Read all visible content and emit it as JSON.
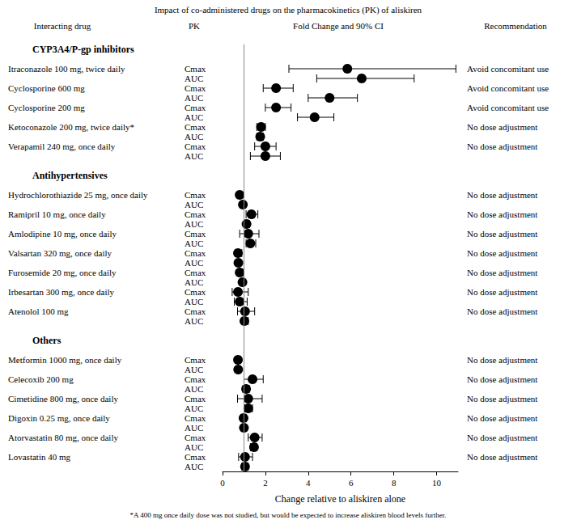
{
  "chart_data": {
    "type": "forest",
    "title": "Impact of co-administered drugs on the pharmacokinetics (PK) of aliskiren",
    "column_headers": [
      "Interacting drug",
      "PK",
      "Fold Change and 90% CI",
      "Recommendation"
    ],
    "x_label": "Change relative to aliskiren alone",
    "footnote": "*A 400 mg once daily dose was not studied, but would be expected to increase aliskiren blood levels further.",
    "xlim": [
      0,
      11
    ],
    "xticks": [
      0,
      2,
      4,
      6,
      8,
      10
    ],
    "reference_line": 1,
    "color": "#000000",
    "marker": "circle",
    "groups": [
      {
        "name": "CYP3A4/P-gp inhibitors",
        "drugs": [
          {
            "name": "Itraconazole 100 mg, twice daily",
            "recommendation": "Avoid concomitant use",
            "measures": [
              {
                "name": "Cmax",
                "value": 5.83,
                "ci": [
                  3.1,
                  10.9
                ]
              },
              {
                "name": "AUC",
                "value": 6.5,
                "ci": [
                  4.4,
                  8.95
                ]
              }
            ]
          },
          {
            "name": "Cyclosporine 600 mg",
            "recommendation": "Avoid concomitant use",
            "measures": [
              {
                "name": "Cmax",
                "value": 2.5,
                "ci": [
                  1.9,
                  3.3
                ]
              },
              {
                "name": "AUC",
                "value": 5.0,
                "ci": [
                  4.0,
                  6.3
                ]
              }
            ]
          },
          {
            "name": "Cyclosporine 200 mg",
            "recommendation": "Avoid concomitant use",
            "measures": [
              {
                "name": "Cmax",
                "value": 2.5,
                "ci": [
                  2.0,
                  3.2
                ]
              },
              {
                "name": "AUC",
                "value": 4.3,
                "ci": [
                  3.5,
                  5.2
                ]
              }
            ]
          },
          {
            "name": "Ketoconazole 200 mg, twice daily*",
            "recommendation": "No dose adjustment",
            "measures": [
              {
                "name": "Cmax",
                "value": 1.8,
                "ci": [
                  1.6,
                  2.0
                ]
              },
              {
                "name": "AUC",
                "value": 1.76,
                "ci": [
                  1.6,
                  1.9
                ]
              }
            ]
          },
          {
            "name": "Verapamil 240 mg, once daily",
            "recommendation": "No dose adjustment",
            "measures": [
              {
                "name": "Cmax",
                "value": 2.0,
                "ci": [
                  1.5,
                  2.5
                ]
              },
              {
                "name": "AUC",
                "value": 2.0,
                "ci": [
                  1.3,
                  2.7
                ]
              }
            ]
          }
        ]
      },
      {
        "name": "Antihypertensives",
        "drugs": [
          {
            "name": "Hydrochlorothiazide 25 mg, once daily",
            "recommendation": "No dose adjustment",
            "measures": [
              {
                "name": "Cmax",
                "value": 0.8,
                "ci": [
                  0.7,
                  0.9
                ]
              },
              {
                "name": "AUC",
                "value": 0.95,
                "ci": [
                  0.9,
                  1.0
                ]
              }
            ]
          },
          {
            "name": "Ramipril 10 mg, once daily",
            "recommendation": "No dose adjustment",
            "measures": [
              {
                "name": "Cmax",
                "value": 1.35,
                "ci": [
                  1.1,
                  1.65
                ]
              },
              {
                "name": "AUC",
                "value": 1.12,
                "ci": [
                  1.0,
                  1.25
                ]
              }
            ]
          },
          {
            "name": "Amlodipine 10 mg, once daily",
            "recommendation": "No dose adjustment",
            "measures": [
              {
                "name": "Cmax",
                "value": 1.2,
                "ci": [
                  0.8,
                  1.7
                ]
              },
              {
                "name": "AUC",
                "value": 1.3,
                "ci": [
                  1.1,
                  1.55
                ]
              }
            ]
          },
          {
            "name": "Valsartan 320 mg, once daily",
            "recommendation": "No dose adjustment",
            "measures": [
              {
                "name": "Cmax",
                "value": 0.72,
                "ci": [
                  0.6,
                  0.9
                ]
              },
              {
                "name": "AUC",
                "value": 0.74,
                "ci": [
                  0.65,
                  0.85
                ]
              }
            ]
          },
          {
            "name": "Furosemide 20 mg, once daily",
            "recommendation": "No dose adjustment",
            "measures": [
              {
                "name": "Cmax",
                "value": 0.8,
                "ci": [
                  0.7,
                  0.95
                ]
              },
              {
                "name": "AUC",
                "value": 0.93,
                "ci": [
                  0.85,
                  1.0
                ]
              }
            ]
          },
          {
            "name": "Irbesartan 300 mg, once daily",
            "recommendation": "No dose adjustment",
            "measures": [
              {
                "name": "Cmax",
                "value": 0.72,
                "ci": [
                  0.45,
                  1.2
                ]
              },
              {
                "name": "AUC",
                "value": 0.8,
                "ci": [
                  0.55,
                  1.15
                ]
              }
            ]
          },
          {
            "name": "Atenolol 100 mg",
            "recommendation": "No dose adjustment",
            "measures": [
              {
                "name": "Cmax",
                "value": 1.05,
                "ci": [
                  0.7,
                  1.5
                ]
              },
              {
                "name": "AUC",
                "value": 1.02,
                "ci": [
                  0.9,
                  1.2
                ]
              }
            ]
          }
        ]
      },
      {
        "name": "Others",
        "drugs": [
          {
            "name": "Metformin 1000 mg, once daily",
            "recommendation": "No dose adjustment",
            "measures": [
              {
                "name": "Cmax",
                "value": 0.72,
                "ci": [
                  0.6,
                  0.85
                ]
              },
              {
                "name": "AUC",
                "value": 0.73,
                "ci": [
                  0.65,
                  0.8
                ]
              }
            ]
          },
          {
            "name": "Celecoxib 200 mg",
            "recommendation": "No dose adjustment",
            "measures": [
              {
                "name": "Cmax",
                "value": 1.4,
                "ci": [
                  1.0,
                  1.9
                ]
              },
              {
                "name": "AUC",
                "value": 1.1,
                "ci": [
                  0.95,
                  1.25
                ]
              }
            ]
          },
          {
            "name": "Cimetidine 800 mg, once daily",
            "recommendation": "No dose adjustment",
            "measures": [
              {
                "name": "Cmax",
                "value": 1.2,
                "ci": [
                  0.7,
                  1.85
                ]
              },
              {
                "name": "AUC",
                "value": 1.2,
                "ci": [
                  1.05,
                  1.4
                ]
              }
            ]
          },
          {
            "name": "Digoxin 0.25 mg, once daily",
            "recommendation": "No dose adjustment",
            "measures": [
              {
                "name": "Cmax",
                "value": 0.98,
                "ci": [
                  0.85,
                  1.1
                ]
              },
              {
                "name": "AUC",
                "value": 1.0,
                "ci": [
                  0.9,
                  1.1
                ]
              }
            ]
          },
          {
            "name": "Atorvastatin 80 mg, once daily",
            "recommendation": "No dose adjustment",
            "measures": [
              {
                "name": "Cmax",
                "value": 1.5,
                "ci": [
                  1.2,
                  1.85
                ]
              },
              {
                "name": "AUC",
                "value": 1.47,
                "ci": [
                  1.3,
                  1.6
                ]
              }
            ]
          },
          {
            "name": "Lovastatin 40 mg",
            "recommendation": "No dose adjustment",
            "measures": [
              {
                "name": "Cmax",
                "value": 1.05,
                "ci": [
                  0.75,
                  1.4
                ]
              },
              {
                "name": "AUC",
                "value": 1.05,
                "ci": [
                  0.9,
                  1.2
                ]
              }
            ]
          }
        ]
      }
    ]
  }
}
